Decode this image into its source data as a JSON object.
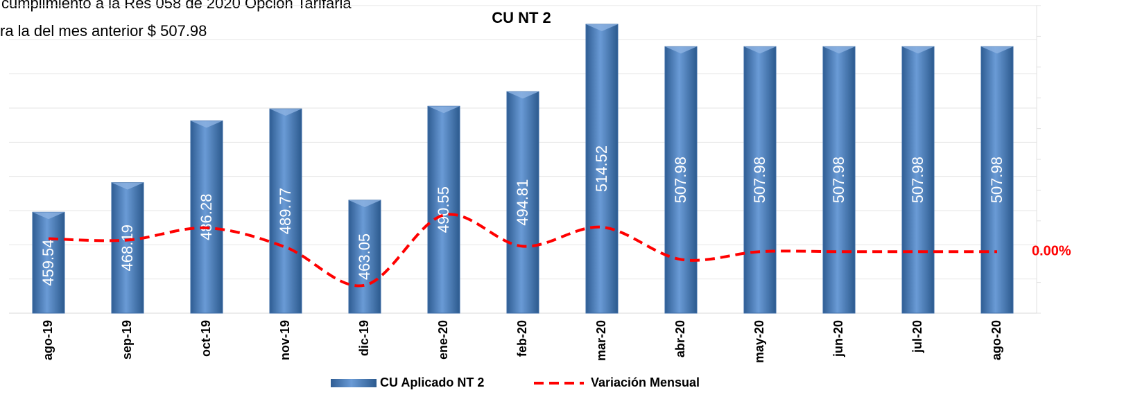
{
  "chart_data": {
    "type": "bar",
    "title": "CU NT 2",
    "annotations": [
      "cumplimiento a la Res 058 de 2020 Opción Tarifaria",
      "ra la del mes anterior $ 507.98"
    ],
    "categories": [
      "ago-19",
      "sep-19",
      "oct-19",
      "nov-19",
      "dic-19",
      "ene-20",
      "feb-20",
      "mar-20",
      "abr-20",
      "may-20",
      "jun-20",
      "jul-20",
      "ago-20"
    ],
    "series": [
      {
        "name": "CU Aplicado NT 2",
        "color": "#4f81bd",
        "values": [
          459.54,
          468.19,
          486.28,
          489.77,
          463.05,
          490.55,
          494.81,
          514.52,
          507.98,
          507.98,
          507.98,
          507.98,
          507.98
        ]
      },
      {
        "name": "Variación Mensual",
        "color": "#ff0000",
        "type": "line",
        "axis": "y2",
        "values": [
          2.1,
          1.88,
          3.86,
          0.72,
          -5.46,
          5.94,
          0.87,
          3.98,
          -1.27,
          0,
          0,
          0,
          0
        ],
        "value_labels": [
          null,
          null,
          null,
          null,
          null,
          null,
          null,
          null,
          null,
          null,
          null,
          null,
          "0.00%"
        ]
      }
    ],
    "ylim": [
      430,
      520
    ],
    "yticks": [
      430,
      440,
      450,
      460,
      470,
      480,
      490,
      500,
      510,
      520
    ],
    "y2lim": [
      -10,
      40
    ],
    "y2ticks": [
      -10,
      -5,
      0,
      5,
      10,
      15,
      20,
      25,
      30,
      35,
      40
    ],
    "grid": true,
    "legend": "bottom"
  }
}
